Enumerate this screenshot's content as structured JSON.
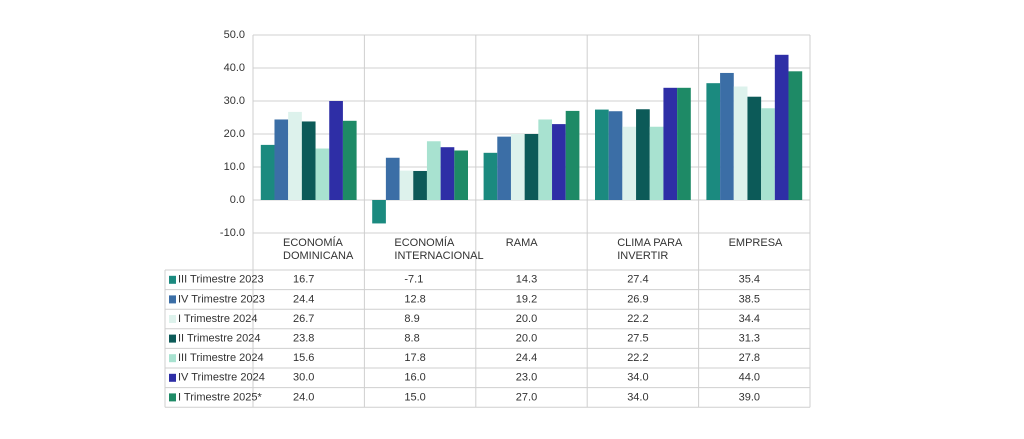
{
  "chart_data": {
    "type": "bar",
    "categories": [
      "ECONOMÍA DOMINICANA",
      "ECONOMÍA INTERNACIONAL",
      "RAMA",
      "CLIMA PARA INVERTIR",
      "EMPRESA"
    ],
    "series": [
      {
        "name": "III Trimestre 2023",
        "color": "#1b8a7f",
        "values": [
          16.7,
          -7.1,
          14.3,
          27.4,
          35.4
        ],
        "value_labels": [
          "16.7",
          "-7.1",
          "14.3",
          "27.4",
          "35.4"
        ]
      },
      {
        "name": "IV Trimestre 2023",
        "color": "#3b6ea6",
        "values": [
          24.4,
          12.8,
          19.2,
          26.9,
          38.5
        ],
        "value_labels": [
          "24.4",
          "12.8",
          "19.2",
          "26.9",
          "38.5"
        ]
      },
      {
        "name": "I Trimestre 2024",
        "color": "#ddf2ec",
        "values": [
          26.7,
          8.9,
          20,
          22.2,
          34.4
        ],
        "value_labels": [
          "26.7",
          "8.9",
          "20.0",
          "22.2",
          "34.4"
        ]
      },
      {
        "name": "II Trimestre 2024",
        "color": "#0c5a58",
        "values": [
          23.8,
          8.8,
          20,
          27.5,
          31.3
        ],
        "value_labels": [
          "23.8",
          "8.8",
          "20.0",
          "27.5",
          "31.3"
        ]
      },
      {
        "name": "III Trimestre 2024",
        "color": "#a8e2d0",
        "values": [
          15.6,
          17.8,
          24.4,
          22.2,
          27.8
        ],
        "value_labels": [
          "15.6",
          "17.8",
          "24.4",
          "22.2",
          "27.8"
        ]
      },
      {
        "name": "IV Trimestre 2024",
        "color": "#2e2ea6",
        "values": [
          30,
          16,
          23,
          34,
          44
        ],
        "value_labels": [
          "30.0",
          "16.0",
          "23.0",
          "34.0",
          "44.0"
        ]
      },
      {
        "name": "I Trimestre 2025*",
        "color": "#1e8a66",
        "values": [
          24,
          15,
          27,
          34,
          39
        ],
        "value_labels": [
          "24.0",
          "15.0",
          "27.0",
          "34.0",
          "39.0"
        ]
      }
    ],
    "ylim": [
      -10,
      50
    ],
    "yticks": [
      {
        "value": -10,
        "label": "-10.0"
      },
      {
        "value": 0,
        "label": "0.0"
      },
      {
        "value": 10,
        "label": "10.0"
      },
      {
        "value": 20,
        "label": "20.0"
      },
      {
        "value": 30,
        "label": "30.0"
      },
      {
        "value": 40,
        "label": "40.0"
      },
      {
        "value": 50,
        "label": "50.0"
      }
    ],
    "grid": true
  }
}
